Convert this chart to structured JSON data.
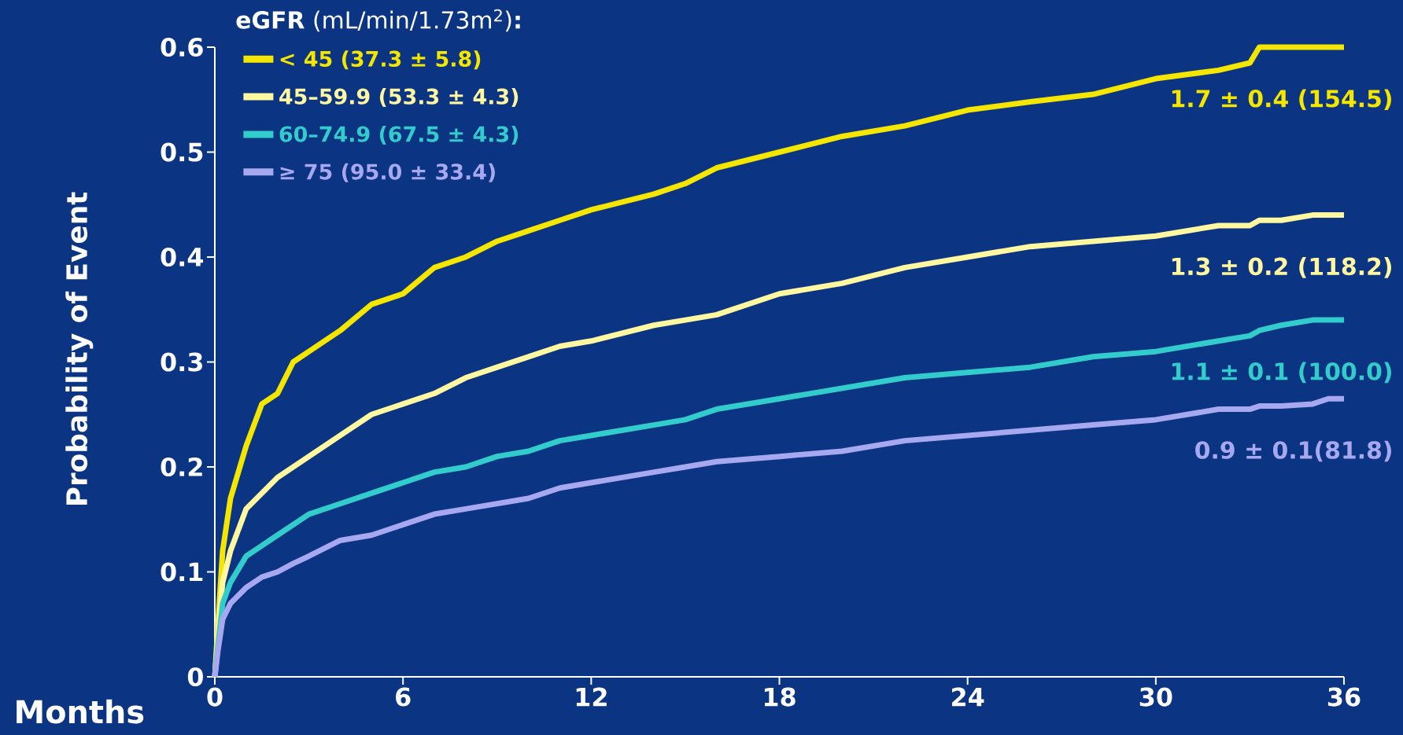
{
  "chart_data": {
    "type": "line",
    "xlabel": "Months",
    "ylabel": "Probability of Event",
    "legend_title": "**eGFR** (mL/min/1.73m$^{2}$)**:**",
    "x": [
      0,
      0.1,
      0.25,
      0.5,
      1,
      1.5,
      2,
      2.5,
      3,
      4,
      5,
      6,
      7,
      8,
      9,
      10,
      11,
      12,
      14,
      15,
      16,
      18,
      20,
      22,
      24,
      26,
      28,
      30,
      32,
      33,
      33.3,
      34,
      35,
      35.5,
      36
    ],
    "series": [
      {
        "name": "< 45  (37.3 ± 5.8)",
        "color": "#f5e600",
        "values": [
          0,
          0.05,
          0.12,
          0.17,
          0.22,
          0.26,
          0.27,
          0.3,
          0.31,
          0.33,
          0.355,
          0.365,
          0.39,
          0.4,
          0.415,
          0.425,
          0.435,
          0.445,
          0.46,
          0.47,
          0.485,
          0.5,
          0.515,
          0.525,
          0.54,
          0.548,
          0.555,
          0.57,
          0.578,
          0.585,
          0.6,
          0.6,
          0.6,
          0.6,
          0.6
        ]
      },
      {
        "name": "45–59.9 (53.3 ± 4.3)",
        "color": "#fff8a0",
        "values": [
          0,
          0.04,
          0.09,
          0.12,
          0.16,
          0.175,
          0.19,
          0.2,
          0.21,
          0.23,
          0.25,
          0.26,
          0.27,
          0.285,
          0.295,
          0.305,
          0.315,
          0.32,
          0.335,
          0.34,
          0.345,
          0.365,
          0.375,
          0.39,
          0.4,
          0.41,
          0.415,
          0.42,
          0.43,
          0.43,
          0.435,
          0.435,
          0.44,
          0.44,
          0.44
        ]
      },
      {
        "name": "60–74.9 (67.5 ± 4.3)",
        "color": "#33cccc",
        "values": [
          0,
          0.03,
          0.07,
          0.09,
          0.115,
          0.125,
          0.135,
          0.145,
          0.155,
          0.165,
          0.175,
          0.185,
          0.195,
          0.2,
          0.21,
          0.215,
          0.225,
          0.23,
          0.24,
          0.245,
          0.255,
          0.265,
          0.275,
          0.285,
          0.29,
          0.295,
          0.305,
          0.31,
          0.32,
          0.325,
          0.33,
          0.335,
          0.34,
          0.34,
          0.34
        ]
      },
      {
        "name": "≥ 75 (95.0 ± 33.4)",
        "color": "#a8a8f0",
        "values": [
          0,
          0.025,
          0.055,
          0.07,
          0.085,
          0.095,
          0.1,
          0.108,
          0.115,
          0.13,
          0.135,
          0.145,
          0.155,
          0.16,
          0.165,
          0.17,
          0.18,
          0.185,
          0.195,
          0.2,
          0.205,
          0.21,
          0.215,
          0.225,
          0.23,
          0.235,
          0.24,
          0.245,
          0.255,
          0.255,
          0.258,
          0.258,
          0.26,
          0.265,
          0.265
        ]
      }
    ],
    "annotations": [
      "1.7 ± 0.4 (154.5)",
      "1.3 ± 0.2 (118.2)",
      "1.1 ± 0.1 (100.0)",
      "0.9 ± 0.1(81.8)"
    ],
    "xlim": [
      0,
      36
    ],
    "ylim": [
      0,
      0.6
    ],
    "xticks": [
      0,
      6,
      12,
      18,
      24,
      30,
      36
    ],
    "yticks": [
      0,
      0.1,
      0.2,
      0.3,
      0.4,
      0.5,
      0.6
    ],
    "legend": "top left",
    "line_style": "solid"
  }
}
